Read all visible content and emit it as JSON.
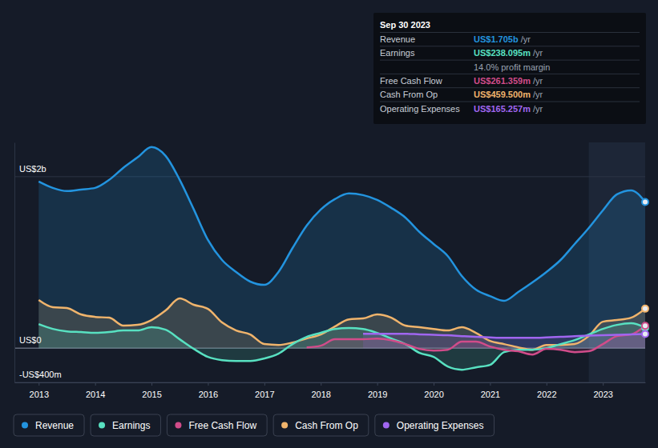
{
  "chart_data": {
    "type": "area",
    "x": [
      2013,
      2013.25,
      2013.5,
      2013.75,
      2014,
      2014.25,
      2014.5,
      2014.75,
      2015,
      2015.25,
      2015.5,
      2015.75,
      2016,
      2016.25,
      2016.5,
      2016.75,
      2017,
      2017.25,
      2017.5,
      2017.75,
      2018,
      2018.25,
      2018.5,
      2018.75,
      2019,
      2019.25,
      2019.5,
      2019.75,
      2020,
      2020.25,
      2020.5,
      2020.75,
      2021,
      2021.25,
      2021.5,
      2021.75,
      2022,
      2022.25,
      2022.5,
      2022.75,
      2023,
      2023.25,
      2023.5,
      2023.75
    ],
    "series": [
      {
        "name": "Revenue",
        "color": "#2394df",
        "values": [
          1944,
          1869,
          1832,
          1850,
          1869,
          1963,
          2103,
          2224,
          2346,
          2243,
          1963,
          1617,
          1262,
          1028,
          888,
          776,
          738,
          888,
          1168,
          1430,
          1617,
          1738,
          1804,
          1785,
          1729,
          1636,
          1523,
          1355,
          1215,
          1075,
          841,
          682,
          607,
          551,
          654,
          766,
          888,
          1028,
          1215,
          1402,
          1607,
          1794,
          1841,
          1705
        ]
      },
      {
        "name": "Earnings",
        "color": "#58e1c1",
        "values": [
          280,
          224,
          196,
          187,
          178,
          187,
          206,
          206,
          243,
          215,
          103,
          -9,
          -103,
          -140,
          -150,
          -150,
          -121,
          -65,
          47,
          131,
          178,
          224,
          234,
          224,
          178,
          112,
          47,
          -56,
          -103,
          -215,
          -252,
          -224,
          -196,
          -47,
          -19,
          -19,
          0,
          47,
          93,
          159,
          224,
          271,
          290,
          238
        ]
      },
      {
        "name": "Free Cash Flow",
        "color": "#d14c8a",
        "values": [
          null,
          null,
          null,
          null,
          null,
          null,
          null,
          null,
          null,
          null,
          null,
          null,
          null,
          null,
          null,
          null,
          null,
          null,
          null,
          9,
          28,
          103,
          103,
          103,
          112,
          93,
          47,
          -9,
          -28,
          -19,
          75,
          75,
          19,
          -19,
          -37,
          -75,
          -9,
          -19,
          -47,
          -37,
          47,
          140,
          159,
          261
        ]
      },
      {
        "name": "Cash From Op",
        "color": "#f0b46c",
        "values": [
          561,
          477,
          467,
          393,
          364,
          355,
          262,
          271,
          327,
          439,
          579,
          505,
          458,
          299,
          206,
          159,
          47,
          37,
          65,
          112,
          159,
          252,
          336,
          346,
          393,
          355,
          262,
          243,
          224,
          206,
          243,
          178,
          84,
          47,
          9,
          -19,
          37,
          37,
          47,
          140,
          308,
          327,
          355,
          460
        ]
      },
      {
        "name": "Operating Expenses",
        "color": "#a066f0",
        "values": [
          null,
          null,
          null,
          null,
          null,
          null,
          null,
          null,
          null,
          null,
          null,
          null,
          null,
          null,
          null,
          null,
          null,
          null,
          null,
          null,
          null,
          null,
          null,
          168,
          168,
          168,
          168,
          160,
          155,
          150,
          140,
          131,
          125,
          121,
          121,
          121,
          125,
          131,
          140,
          145,
          150,
          155,
          160,
          165
        ]
      }
    ],
    "xlim": [
      2012.57,
      2023.75
    ],
    "xticks": [
      2013,
      2014,
      2015,
      2016,
      2017,
      2018,
      2019,
      2020,
      2021,
      2022,
      2023
    ],
    "ylim": [
      -400,
      2400
    ],
    "yticks": [
      {
        "value": -400,
        "label": "-US$400m"
      },
      {
        "value": 0,
        "label": "US$0"
      },
      {
        "value": 2000,
        "label": "US$2b"
      }
    ],
    "grid": true,
    "legend": "bottom",
    "annotations": {
      "title": "Sep 30 2023",
      "rows": [
        {
          "label": "Revenue",
          "value": "US$1.705b",
          "suffix": "/yr"
        },
        {
          "label": "Earnings",
          "value": "US$238.095m",
          "suffix": "/yr"
        },
        {
          "text": "14.0% profit margin"
        },
        {
          "label": "Free Cash Flow",
          "value": "US$261.359m",
          "suffix": "/yr"
        },
        {
          "label": "Cash From Op",
          "value": "US$459.500m",
          "suffix": "/yr"
        },
        {
          "label": "Operating Expenses",
          "value": "US$165.257m",
          "suffix": "/yr"
        }
      ]
    }
  }
}
